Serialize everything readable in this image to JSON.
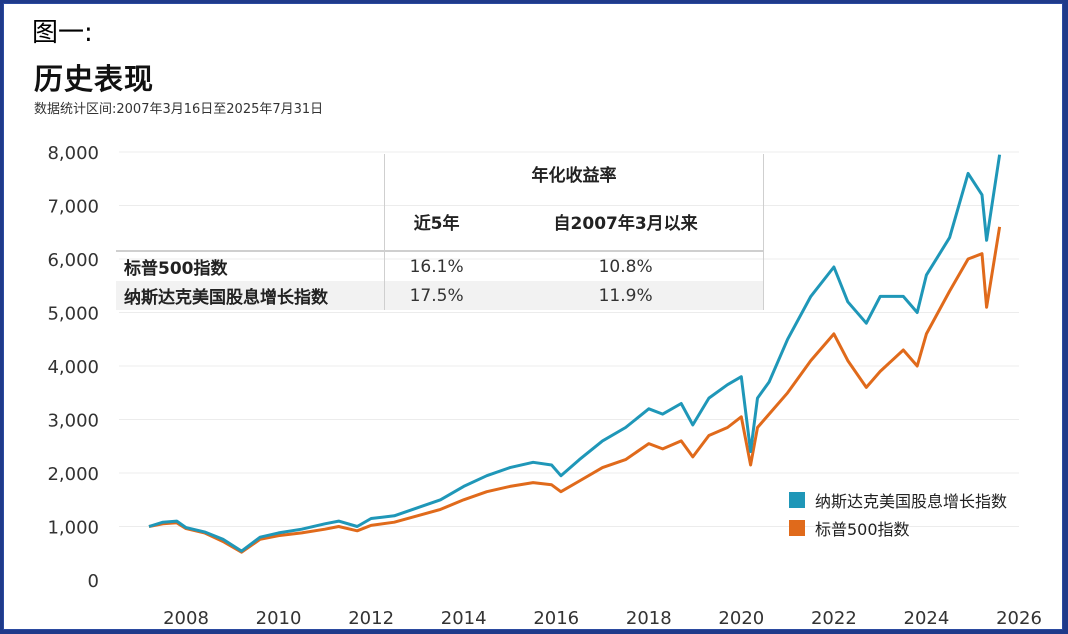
{
  "figure_label": "图一:",
  "title": "历史表现",
  "subtitle": "数据统计区间:2007年3月16日至2025年7月31日",
  "table": {
    "group_header": "年化收益率",
    "col1": "近5年",
    "col2": "自2007年3月以来",
    "rows": [
      {
        "name": "标普500指数",
        "v1": "16.1%",
        "v2": "10.8%"
      },
      {
        "name": "纳斯达克美国股息增长指数",
        "v1": "17.5%",
        "v2": "11.9%"
      }
    ]
  },
  "legend": {
    "nasdaq": "纳斯达克美国股息增长指数",
    "sp500": "标普500指数"
  },
  "colors": {
    "nasdaq": "#1f97b8",
    "sp500": "#e06a1b",
    "frame": "#1f3a8a"
  },
  "chart_data": {
    "type": "line",
    "xlim": [
      2007.2,
      2026
    ],
    "ylim": [
      0,
      8000
    ],
    "y_ticks": [
      0,
      1000,
      2000,
      3000,
      4000,
      5000,
      6000,
      7000,
      8000
    ],
    "y_tick_labels": [
      "0",
      "1,000",
      "2,000",
      "3,000",
      "4,000",
      "5,000",
      "6,000",
      "7,000",
      "8,000"
    ],
    "x_ticks": [
      "2008",
      "2010",
      "2012",
      "2014",
      "2016",
      "2018",
      "2020",
      "2022",
      "2024",
      "2026"
    ],
    "grid": true,
    "legend_position": "bottom-right",
    "series": [
      {
        "name": "纳斯达克美国股息增长指数",
        "x": [
          2007.2,
          2007.5,
          2007.8,
          2008.0,
          2008.4,
          2008.8,
          2009.2,
          2009.6,
          2010.0,
          2010.5,
          2011.0,
          2011.3,
          2011.7,
          2012.0,
          2012.5,
          2013.0,
          2013.5,
          2014.0,
          2014.5,
          2015.0,
          2015.5,
          2015.9,
          2016.1,
          2016.5,
          2017.0,
          2017.5,
          2018.0,
          2018.3,
          2018.7,
          2018.95,
          2019.3,
          2019.7,
          2020.0,
          2020.2,
          2020.35,
          2020.6,
          2021.0,
          2021.5,
          2022.0,
          2022.3,
          2022.7,
          2023.0,
          2023.5,
          2023.8,
          2024.0,
          2024.5,
          2024.9,
          2025.2,
          2025.3,
          2025.58
        ],
        "y": [
          1000,
          1080,
          1100,
          980,
          900,
          760,
          540,
          800,
          880,
          950,
          1050,
          1100,
          1000,
          1150,
          1200,
          1350,
          1500,
          1750,
          1950,
          2100,
          2200,
          2150,
          1950,
          2250,
          2600,
          2850,
          3200,
          3100,
          3300,
          2900,
          3400,
          3650,
          3800,
          2400,
          3400,
          3700,
          4500,
          5300,
          5850,
          5200,
          4800,
          5300,
          5300,
          5000,
          5700,
          6400,
          7600,
          7200,
          6350,
          7950
        ]
      },
      {
        "name": "标普500指数",
        "x": [
          2007.2,
          2007.5,
          2007.8,
          2008.0,
          2008.4,
          2008.8,
          2009.2,
          2009.6,
          2010.0,
          2010.5,
          2011.0,
          2011.3,
          2011.7,
          2012.0,
          2012.5,
          2013.0,
          2013.5,
          2014.0,
          2014.5,
          2015.0,
          2015.5,
          2015.9,
          2016.1,
          2016.5,
          2017.0,
          2017.5,
          2018.0,
          2018.3,
          2018.7,
          2018.95,
          2019.3,
          2019.7,
          2020.0,
          2020.2,
          2020.35,
          2020.6,
          2021.0,
          2021.5,
          2022.0,
          2022.3,
          2022.7,
          2023.0,
          2023.5,
          2023.8,
          2024.0,
          2024.5,
          2024.9,
          2025.2,
          2025.3,
          2025.58
        ],
        "y": [
          1000,
          1050,
          1070,
          960,
          880,
          720,
          520,
          760,
          830,
          880,
          950,
          1000,
          920,
          1020,
          1080,
          1200,
          1320,
          1500,
          1650,
          1750,
          1820,
          1780,
          1650,
          1850,
          2100,
          2250,
          2550,
          2450,
          2600,
          2300,
          2700,
          2850,
          3050,
          2150,
          2850,
          3100,
          3500,
          4100,
          4600,
          4100,
          3600,
          3900,
          4300,
          4000,
          4600,
          5400,
          6000,
          6100,
          5100,
          6600
        ]
      }
    ]
  }
}
